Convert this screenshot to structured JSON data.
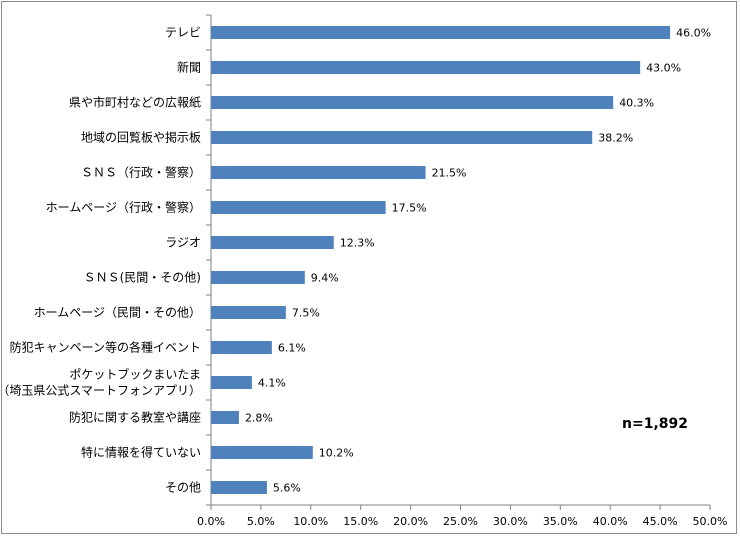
{
  "chart_data": {
    "type": "bar",
    "orientation": "horizontal",
    "categories": [
      [
        "テレビ"
      ],
      [
        "新聞"
      ],
      [
        "県や市町村などの広報紙"
      ],
      [
        "地域の回覧板や掲示板"
      ],
      [
        "ＳＮＳ（行政・警察）"
      ],
      [
        "ホームページ（行政・警察）"
      ],
      [
        "ラジオ"
      ],
      [
        "ＳＮＳ(民間・その他)"
      ],
      [
        "ホームページ（民間・その他）"
      ],
      [
        "防犯キャンペーン等の各種イベント"
      ],
      [
        "ポケットブックまいたま",
        "（埼玉県公式スマートフォンアプリ）"
      ],
      [
        "防犯に関する教室や講座"
      ],
      [
        "特に情報を得ていない"
      ],
      [
        "その他"
      ]
    ],
    "values": [
      46.0,
      43.0,
      40.3,
      38.2,
      21.5,
      17.5,
      12.3,
      9.4,
      7.5,
      6.1,
      4.1,
      2.8,
      10.2,
      5.6
    ],
    "value_labels": [
      "46.0%",
      "43.0%",
      "40.3%",
      "38.2%",
      "21.5%",
      "17.5%",
      "12.3%",
      "9.4%",
      "7.5%",
      "6.1%",
      "4.1%",
      "2.8%",
      "10.2%",
      "5.6%"
    ],
    "xlim": [
      0,
      50
    ],
    "ticks": [
      0,
      5,
      10,
      15,
      20,
      25,
      30,
      35,
      40,
      45,
      50
    ],
    "tick_labels": [
      "0.0%",
      "5.0%",
      "10.0%",
      "15.0%",
      "20.0%",
      "25.0%",
      "30.0%",
      "35.0%",
      "40.0%",
      "45.0%",
      "50.0%"
    ],
    "bar_color": "#4f81bd",
    "grid": false,
    "annotation": "n=1,892"
  }
}
